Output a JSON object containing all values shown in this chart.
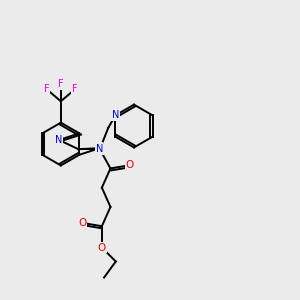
{
  "background_color": "#ebebeb",
  "atom_colors": {
    "N": "#0000ee",
    "O": "#ee0000",
    "S": "#ccaa00",
    "F": "#ee00ee",
    "C": "#000000"
  },
  "bond_color": "#000000",
  "figsize": [
    3.0,
    3.0
  ],
  "dpi": 100,
  "BL": 0.072
}
